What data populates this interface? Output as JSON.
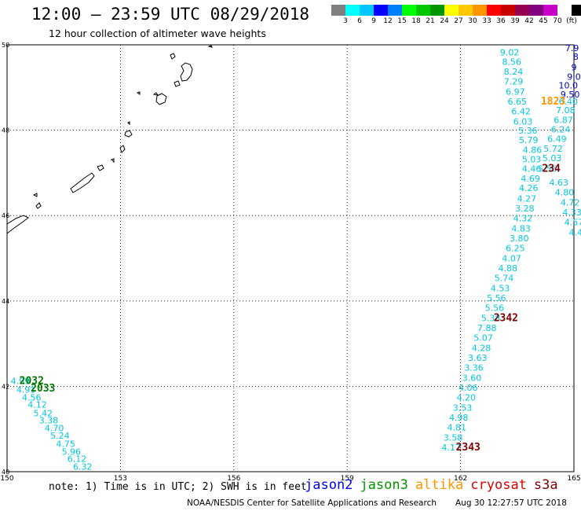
{
  "header": {
    "title": "12:00 — 23:59 UTC 08/29/2018",
    "subtitle": "12 hour collection of altimeter wave heights"
  },
  "colorbar": {
    "colors": [
      "#808080",
      "#00ffff",
      "#00c8ff",
      "#0000ff",
      "#0080ff",
      "#00ff00",
      "#00c800",
      "#009600",
      "#ffff00",
      "#ffc800",
      "#ff9600",
      "#ff0000",
      "#c80000",
      "#960050",
      "#800080",
      "#c800c8",
      "#ffffff",
      "#000000"
    ],
    "labels": [
      "3",
      "6",
      "9",
      "12",
      "15",
      "18",
      "21",
      "24",
      "27",
      "30",
      "33",
      "36",
      "39",
      "42",
      "45",
      "70",
      "(ft)"
    ]
  },
  "map": {
    "lon_range": [
      150,
      165
    ],
    "lat_range": [
      40,
      50
    ],
    "lon_ticks": [
      "150",
      "153",
      "156",
      "159",
      "162",
      "165"
    ],
    "lat_ticks": [
      "40",
      "42",
      "44",
      "46",
      "48",
      "50"
    ],
    "grid": true
  },
  "tracks": [
    {
      "satellite": "jason3-like cyan",
      "color": "#00c8e0",
      "points": [
        {
          "lon": 163.3,
          "lat": 49.75,
          "v": "9.02"
        },
        {
          "lon": 163.35,
          "lat": 49.53,
          "v": "8.56"
        },
        {
          "lon": 163.4,
          "lat": 49.3,
          "v": "8.24"
        },
        {
          "lon": 163.4,
          "lat": 49.07,
          "v": "7.29"
        },
        {
          "lon": 163.45,
          "lat": 48.83,
          "v": "6.97"
        },
        {
          "lon": 163.5,
          "lat": 48.6,
          "v": "6.65"
        },
        {
          "lon": 163.6,
          "lat": 48.37,
          "v": "6.42"
        },
        {
          "lon": 163.65,
          "lat": 48.13,
          "v": "6.03"
        },
        {
          "lon": 163.78,
          "lat": 47.92,
          "v": "5.36"
        },
        {
          "lon": 163.8,
          "lat": 47.7,
          "v": "5.79"
        },
        {
          "lon": 163.9,
          "lat": 47.47,
          "v": "4.86"
        },
        {
          "lon": 163.88,
          "lat": 47.25,
          "v": "5.03"
        },
        {
          "lon": 163.88,
          "lat": 47.03,
          "v": "4.46"
        },
        {
          "lon": 163.85,
          "lat": 46.8,
          "v": "4.69"
        },
        {
          "lon": 163.8,
          "lat": 46.57,
          "v": "4.26"
        },
        {
          "lon": 163.75,
          "lat": 46.33,
          "v": "4.27"
        },
        {
          "lon": 163.7,
          "lat": 46.1,
          "v": "3.28"
        },
        {
          "lon": 163.65,
          "lat": 45.87,
          "v": "4.32"
        },
        {
          "lon": 163.6,
          "lat": 45.63,
          "v": "4.83"
        },
        {
          "lon": 163.55,
          "lat": 45.4,
          "v": "3.80"
        },
        {
          "lon": 163.45,
          "lat": 45.17,
          "v": "6.25"
        },
        {
          "lon": 163.35,
          "lat": 44.93,
          "v": "4.07"
        },
        {
          "lon": 163.25,
          "lat": 44.7,
          "v": "4.88"
        },
        {
          "lon": 163.15,
          "lat": 44.47,
          "v": "5.74"
        },
        {
          "lon": 163.05,
          "lat": 44.23,
          "v": "4.53"
        },
        {
          "lon": 162.95,
          "lat": 44.0,
          "v": "5.56"
        },
        {
          "lon": 162.9,
          "lat": 43.77,
          "v": "5.56"
        },
        {
          "lon": 162.8,
          "lat": 43.53,
          "v": "5.38"
        },
        {
          "lon": 162.7,
          "lat": 43.3,
          "v": "7.88"
        },
        {
          "lon": 162.6,
          "lat": 43.07,
          "v": "5.07"
        },
        {
          "lon": 162.55,
          "lat": 42.83,
          "v": "4.28"
        },
        {
          "lon": 162.45,
          "lat": 42.6,
          "v": "3.63"
        },
        {
          "lon": 162.35,
          "lat": 42.37,
          "v": "3.36"
        },
        {
          "lon": 162.3,
          "lat": 42.13,
          "v": "3.60"
        },
        {
          "lon": 162.2,
          "lat": 41.9,
          "v": "4.06"
        },
        {
          "lon": 162.15,
          "lat": 41.67,
          "v": "4.20"
        },
        {
          "lon": 162.05,
          "lat": 41.43,
          "v": "3.53"
        },
        {
          "lon": 161.95,
          "lat": 41.2,
          "v": "4.98"
        },
        {
          "lon": 161.9,
          "lat": 40.97,
          "v": "4.81"
        },
        {
          "lon": 161.8,
          "lat": 40.73,
          "v": "3.58"
        },
        {
          "lon": 161.75,
          "lat": 40.5,
          "v": "4.17"
        }
      ]
    },
    {
      "satellite": "second cyan track",
      "color": "#00c8e0",
      "points": [
        {
          "lon": 164.85,
          "lat": 48.6,
          "v": "6.40"
        },
        {
          "lon": 164.78,
          "lat": 48.4,
          "v": "7.08"
        },
        {
          "lon": 164.72,
          "lat": 48.17,
          "v": "6.87"
        },
        {
          "lon": 164.65,
          "lat": 47.95,
          "v": "6.24"
        },
        {
          "lon": 164.55,
          "lat": 47.73,
          "v": "6.49"
        },
        {
          "lon": 164.45,
          "lat": 47.5,
          "v": "5.72"
        },
        {
          "lon": 164.42,
          "lat": 47.27,
          "v": "5.03"
        },
        {
          "lon": 164.3,
          "lat": 47.03,
          "v": "5.56"
        },
        {
          "lon": 164.6,
          "lat": 46.7,
          "v": "4.63"
        },
        {
          "lon": 164.75,
          "lat": 46.47,
          "v": "4.80"
        },
        {
          "lon": 164.9,
          "lat": 46.23,
          "v": "4.72"
        },
        {
          "lon": 164.95,
          "lat": 46.0,
          "v": "4.33"
        },
        {
          "lon": 165.0,
          "lat": 45.77,
          "v": "4.57"
        },
        {
          "lon": 165.05,
          "lat": 45.53,
          "v": "4.4"
        }
      ]
    },
    {
      "satellite": "lower-left cyan track",
      "color": "#00c8e0",
      "points": [
        {
          "lon": 150.35,
          "lat": 42.05,
          "v": "4.99"
        },
        {
          "lon": 150.5,
          "lat": 41.85,
          "v": "4.91"
        },
        {
          "lon": 150.65,
          "lat": 41.67,
          "v": "4.56"
        },
        {
          "lon": 150.8,
          "lat": 41.5,
          "v": "4.12"
        },
        {
          "lon": 150.95,
          "lat": 41.3,
          "v": "5.42"
        },
        {
          "lon": 151.1,
          "lat": 41.13,
          "v": "3.38"
        },
        {
          "lon": 151.25,
          "lat": 40.95,
          "v": "4.70"
        },
        {
          "lon": 151.4,
          "lat": 40.77,
          "v": "5.24"
        },
        {
          "lon": 151.55,
          "lat": 40.58,
          "v": "4.75"
        },
        {
          "lon": 151.7,
          "lat": 40.4,
          "v": "5.96"
        },
        {
          "lon": 151.85,
          "lat": 40.23,
          "v": "6.12"
        },
        {
          "lon": 152.0,
          "lat": 40.05,
          "v": "6.32"
        }
      ]
    },
    {
      "satellite": "right-edge blue track",
      "color": "#0000c8",
      "points": [
        {
          "lon": 164.95,
          "lat": 49.85,
          "v": "7.9"
        },
        {
          "lon": 165.05,
          "lat": 49.65,
          "v": "8"
        },
        {
          "lon": 165.0,
          "lat": 49.4,
          "v": "9"
        },
        {
          "lon": 165.0,
          "lat": 49.18,
          "v": "9.0"
        },
        {
          "lon": 164.85,
          "lat": 48.98,
          "v": "10.0"
        },
        {
          "lon": 164.9,
          "lat": 48.77,
          "v": "9.50"
        }
      ]
    }
  ],
  "time_labels": [
    {
      "text": "2032",
      "lon": 150.65,
      "lat": 42.05,
      "color": "#007800"
    },
    {
      "text": "2033",
      "lon": 150.95,
      "lat": 41.88,
      "color": "#007800"
    },
    {
      "text": "2342",
      "lon": 163.2,
      "lat": 43.53,
      "color": "#800000"
    },
    {
      "text": "2343",
      "lon": 162.2,
      "lat": 40.5,
      "color": "#800000"
    },
    {
      "text": "234",
      "lon": 164.4,
      "lat": 47.03,
      "color": "#800000"
    },
    {
      "text": "1823",
      "lon": 164.45,
      "lat": 48.6,
      "color": "#ff9600"
    }
  ],
  "footer": {
    "note": "note: 1) Time is in UTC; 2) SWH is in feet",
    "satellites": [
      {
        "name": "jason2",
        "color": "#0000ff"
      },
      {
        "name": "jason3",
        "color": "#009600"
      },
      {
        "name": "altika",
        "color": "#ff9600"
      },
      {
        "name": "cryosat",
        "color": "#e00000"
      },
      {
        "name": "s3a",
        "color": "#800000"
      }
    ],
    "credit": "NOAA/NESDIS Center for Satellite Applications and Research",
    "timestamp": "Aug 30 12:27:57 UTC 2018"
  }
}
